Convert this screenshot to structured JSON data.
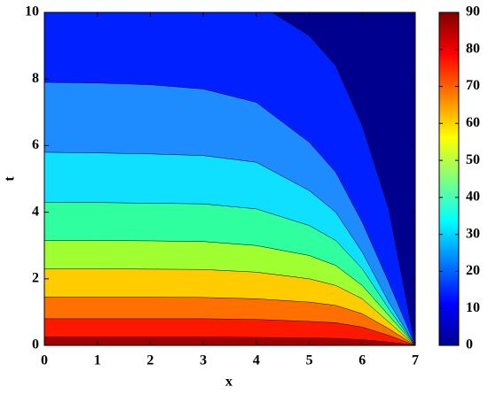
{
  "chart_data": {
    "type": "contourf",
    "xlabel": "x",
    "ylabel": "t",
    "xlim": [
      0,
      7
    ],
    "xticks": [
      0,
      1,
      2,
      3,
      4,
      5,
      6,
      7
    ],
    "ylim": [
      0,
      10
    ],
    "yticks": [
      0,
      2,
      4,
      6,
      8,
      10
    ],
    "background": "#00008f",
    "series": [
      {
        "color": "#0020ff",
        "x": [
          0,
          4.3,
          5,
          5.5,
          6,
          6.5,
          7
        ],
        "y": [
          10,
          10,
          9.3,
          8.4,
          6.6,
          4.1,
          0
        ]
      },
      {
        "color": "#1e8cff",
        "x": [
          0,
          1,
          2,
          3,
          4,
          5,
          5.5,
          6,
          6.5,
          7
        ],
        "y": [
          7.9,
          7.88,
          7.83,
          7.7,
          7.3,
          6.1,
          5.2,
          3.7,
          1.9,
          0
        ]
      },
      {
        "color": "#10e0ff",
        "x": [
          0,
          1,
          2,
          3,
          4,
          5,
          5.5,
          6,
          6.5,
          7
        ],
        "y": [
          5.8,
          5.78,
          5.75,
          5.7,
          5.5,
          4.65,
          4.0,
          2.8,
          1.3,
          0
        ]
      },
      {
        "color": "#30ffa0",
        "x": [
          0,
          1,
          2,
          3,
          4,
          5,
          5.5,
          6,
          6.5,
          7
        ],
        "y": [
          4.3,
          4.29,
          4.27,
          4.25,
          4.1,
          3.6,
          3.15,
          2.3,
          1.1,
          0
        ]
      },
      {
        "color": "#a0ff30",
        "x": [
          0,
          1,
          2,
          3,
          4,
          5,
          5.5,
          6,
          6.5,
          7
        ],
        "y": [
          3.15,
          3.15,
          3.14,
          3.12,
          3.0,
          2.7,
          2.4,
          1.8,
          0.9,
          0
        ]
      },
      {
        "color": "#ffcc00",
        "x": [
          0,
          1,
          2,
          3,
          4,
          5,
          5.5,
          6,
          6.5,
          7
        ],
        "y": [
          2.3,
          2.3,
          2.29,
          2.28,
          2.2,
          2.0,
          1.8,
          1.4,
          0.7,
          0
        ]
      },
      {
        "color": "#ff7000",
        "x": [
          0,
          1,
          2,
          3,
          4,
          5,
          5.5,
          6,
          6.5,
          7
        ],
        "y": [
          1.45,
          1.45,
          1.45,
          1.44,
          1.4,
          1.3,
          1.2,
          0.95,
          0.5,
          0
        ]
      },
      {
        "color": "#ff1800",
        "x": [
          0,
          1,
          2,
          3,
          4,
          5,
          5.5,
          6,
          6.5,
          7
        ],
        "y": [
          0.8,
          0.8,
          0.8,
          0.8,
          0.78,
          0.72,
          0.68,
          0.55,
          0.3,
          0
        ]
      },
      {
        "color": "#a00000",
        "x": [
          0,
          1,
          2,
          3,
          4,
          5,
          5.5,
          6,
          6.5,
          7
        ],
        "y": [
          0.25,
          0.25,
          0.25,
          0.25,
          0.24,
          0.22,
          0.21,
          0.17,
          0.1,
          0
        ]
      }
    ],
    "colorbar": {
      "clim": [
        0,
        90
      ],
      "cticks": [
        0,
        10,
        20,
        30,
        40,
        50,
        60,
        70,
        80,
        90
      ]
    }
  }
}
